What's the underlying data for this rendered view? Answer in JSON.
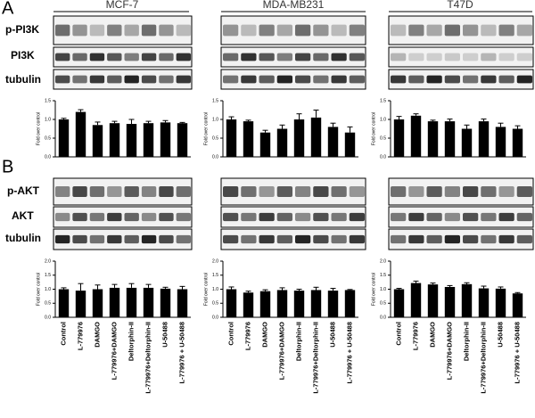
{
  "figure": {
    "panels": [
      {
        "label": "A",
        "cell_lines": [
          "MCF-7",
          "MDA-MB231",
          "T47D"
        ],
        "blots": [
          "p-PI3K",
          "PI3K",
          "tubulin"
        ]
      },
      {
        "label": "B",
        "blots": [
          "p-AKT",
          "AKT",
          "tubulin"
        ]
      }
    ]
  },
  "chart_data": [
    {
      "type": "bar",
      "ylabel": "Fold over control",
      "color": "#000000",
      "categories": [
        null,
        null,
        null,
        null,
        null,
        null,
        null,
        null
      ],
      "values": [
        1.0,
        1.2,
        0.85,
        0.9,
        0.88,
        0.9,
        0.92,
        0.9
      ],
      "errors": [
        0.03,
        0.06,
        0.08,
        0.05,
        0.12,
        0.05,
        0.05,
        0.02
      ],
      "ylim": [
        0,
        1.5
      ],
      "yticks": [
        {
          "value": 0,
          "label": "0.0"
        },
        0.5,
        {
          "value": 1,
          "label": "1.0"
        },
        1.5
      ]
    },
    {
      "type": "bar",
      "ylabel": "Fold over control",
      "color": "#000000",
      "categories": [
        null,
        null,
        null,
        null,
        null,
        null,
        null,
        null
      ],
      "values": [
        1.0,
        0.95,
        0.65,
        0.75,
        1.0,
        1.05,
        0.8,
        0.65
      ],
      "errors": [
        0.07,
        0.03,
        0.06,
        0.1,
        0.15,
        0.2,
        0.1,
        0.15
      ],
      "ylim": [
        0,
        1.5
      ],
      "yticks": [
        {
          "value": 0,
          "label": "0.0"
        },
        0.5,
        {
          "value": 1,
          "label": "1.0"
        },
        1.5
      ]
    },
    {
      "type": "bar",
      "ylabel": "Fold over control",
      "color": "#000000",
      "categories": [
        null,
        null,
        null,
        null,
        null,
        null,
        null,
        null
      ],
      "values": [
        1.0,
        1.1,
        0.95,
        0.95,
        0.75,
        0.95,
        0.8,
        0.75
      ],
      "errors": [
        0.08,
        0.05,
        0.03,
        0.06,
        0.1,
        0.06,
        0.1,
        0.08
      ],
      "ylim": [
        0,
        1.5
      ],
      "yticks": [
        {
          "value": 0,
          "label": "0.0"
        },
        0.5,
        {
          "value": 1,
          "label": "1.0"
        },
        1.5
      ]
    },
    {
      "type": "bar",
      "ylabel": "Fold over control",
      "color": "#000000",
      "categories": [
        "Control",
        "L-779976",
        "DAMGO",
        "L-779976+DAMGO",
        "Deltorphin-II",
        "L-779976+Deltorphin-II",
        "U-50488",
        "L-779976 + U-50488"
      ],
      "values": [
        1.0,
        0.95,
        1.0,
        1.05,
        1.05,
        1.05,
        1.02,
        1.0
      ],
      "errors": [
        0.05,
        0.25,
        0.15,
        0.12,
        0.15,
        0.12,
        0.05,
        0.1
      ],
      "ylim": [
        0,
        2
      ],
      "yticks": [
        {
          "value": 0,
          "label": "0.0"
        },
        0.5,
        {
          "value": 1,
          "label": "1.0"
        },
        1.5,
        {
          "value": 2,
          "label": "2.0"
        }
      ]
    },
    {
      "type": "bar",
      "ylabel": "Fold over control",
      "color": "#000000",
      "categories": [
        "Control",
        "L-779976",
        "DAMGO",
        "L-779976+DAMGO",
        "Deltorphin-II",
        "L-779976+Deltorphin-II",
        "U-50488",
        "L-779976 + U-50488"
      ],
      "values": [
        1.0,
        0.88,
        0.93,
        0.97,
        0.95,
        0.97,
        0.95,
        0.97
      ],
      "errors": [
        0.08,
        0.05,
        0.05,
        0.08,
        0.05,
        0.1,
        0.08,
        0.02
      ],
      "ylim": [
        0,
        2
      ],
      "yticks": [
        {
          "value": 0,
          "label": "0.0"
        },
        0.5,
        {
          "value": 1,
          "label": "1.0"
        },
        1.5,
        {
          "value": 2,
          "label": "2.0"
        }
      ]
    },
    {
      "type": "bar",
      "ylabel": "Fold over control",
      "color": "#000000",
      "categories": [
        "Control",
        "L-779976",
        "DAMGO",
        "L-779976+DAMGO",
        "Deltorphin-II",
        "L-779976+Deltorphin-II",
        "U-50488",
        "L-779976 + U-50488"
      ],
      "values": [
        1.0,
        1.22,
        1.17,
        1.08,
        1.18,
        1.03,
        1.02,
        0.85
      ],
      "errors": [
        0.03,
        0.07,
        0.05,
        0.05,
        0.05,
        0.08,
        0.06,
        0.03
      ],
      "ylim": [
        0,
        2
      ],
      "yticks": [
        {
          "value": 0,
          "label": "0.0"
        },
        0.5,
        {
          "value": 1,
          "label": "1.0"
        },
        1.5,
        {
          "value": 2,
          "label": "2.0"
        }
      ]
    }
  ]
}
